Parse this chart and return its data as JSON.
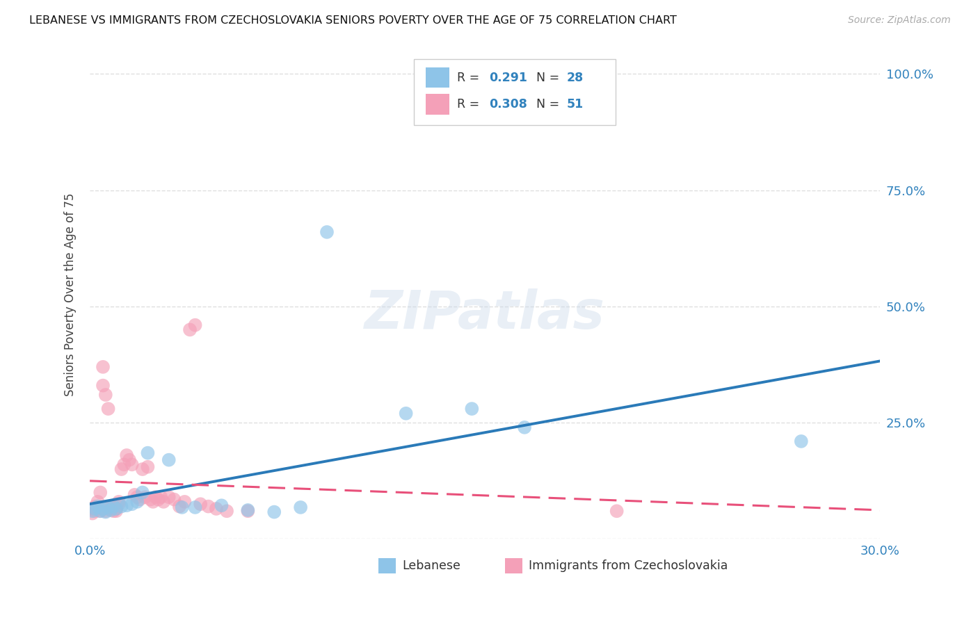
{
  "title": "LEBANESE VS IMMIGRANTS FROM CZECHOSLOVAKIA SENIORS POVERTY OVER THE AGE OF 75 CORRELATION CHART",
  "source": "Source: ZipAtlas.com",
  "ylabel": "Seniors Poverty Over the Age of 75",
  "xlim": [
    0.0,
    0.3
  ],
  "ylim": [
    0.0,
    1.05
  ],
  "x_ticks": [
    0.0,
    0.05,
    0.1,
    0.15,
    0.2,
    0.25,
    0.3
  ],
  "x_tick_labels": [
    "0.0%",
    "",
    "",
    "",
    "",
    "",
    "30.0%"
  ],
  "y_ticks": [
    0.0,
    0.25,
    0.5,
    0.75,
    1.0
  ],
  "y_tick_labels_right": [
    "",
    "25.0%",
    "50.0%",
    "75.0%",
    "100.0%"
  ],
  "legend_label1": "Lebanese",
  "legend_label2": "Immigrants from Czechoslovakia",
  "R1": "0.291",
  "N1": "28",
  "R2": "0.308",
  "N2": "51",
  "color1": "#8ec4e8",
  "color2": "#f4a0b8",
  "line_color1": "#2a7ab8",
  "line_color2": "#e8507a",
  "line_color2_dash": "#e8507a",
  "scatter1_x": [
    0.001,
    0.002,
    0.003,
    0.004,
    0.005,
    0.006,
    0.007,
    0.008,
    0.009,
    0.01,
    0.012,
    0.014,
    0.016,
    0.018,
    0.02,
    0.022,
    0.03,
    0.035,
    0.04,
    0.05,
    0.06,
    0.07,
    0.08,
    0.09,
    0.12,
    0.145,
    0.165,
    0.27
  ],
  "scatter1_y": [
    0.06,
    0.065,
    0.07,
    0.06,
    0.065,
    0.058,
    0.068,
    0.062,
    0.07,
    0.065,
    0.07,
    0.072,
    0.075,
    0.08,
    0.1,
    0.185,
    0.17,
    0.068,
    0.068,
    0.072,
    0.062,
    0.058,
    0.068,
    0.66,
    0.27,
    0.28,
    0.24,
    0.21
  ],
  "scatter2_x": [
    0.001,
    0.001,
    0.002,
    0.002,
    0.003,
    0.003,
    0.004,
    0.004,
    0.005,
    0.005,
    0.006,
    0.006,
    0.007,
    0.007,
    0.008,
    0.008,
    0.009,
    0.009,
    0.01,
    0.01,
    0.011,
    0.011,
    0.012,
    0.013,
    0.014,
    0.015,
    0.016,
    0.017,
    0.018,
    0.019,
    0.02,
    0.021,
    0.022,
    0.023,
    0.024,
    0.025,
    0.026,
    0.027,
    0.028,
    0.03,
    0.032,
    0.034,
    0.036,
    0.038,
    0.04,
    0.042,
    0.045,
    0.048,
    0.052,
    0.06,
    0.2
  ],
  "scatter2_y": [
    0.055,
    0.065,
    0.06,
    0.07,
    0.065,
    0.08,
    0.06,
    0.1,
    0.33,
    0.37,
    0.06,
    0.31,
    0.28,
    0.065,
    0.07,
    0.065,
    0.06,
    0.07,
    0.065,
    0.06,
    0.08,
    0.075,
    0.15,
    0.16,
    0.18,
    0.17,
    0.16,
    0.095,
    0.09,
    0.085,
    0.15,
    0.09,
    0.155,
    0.085,
    0.08,
    0.09,
    0.085,
    0.09,
    0.08,
    0.09,
    0.085,
    0.07,
    0.08,
    0.45,
    0.46,
    0.075,
    0.07,
    0.065,
    0.06,
    0.06,
    0.06
  ],
  "watermark": "ZIPatlas",
  "background_color": "#ffffff",
  "grid_color": "#e0e0e0"
}
